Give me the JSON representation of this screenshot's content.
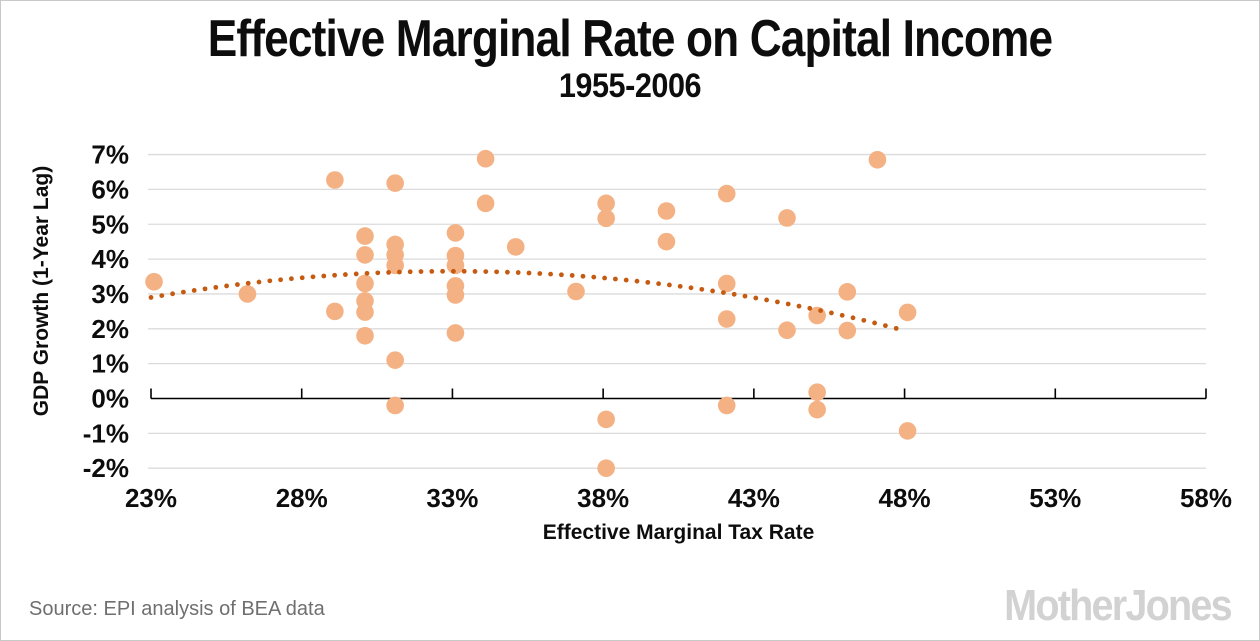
{
  "header": {
    "title": "Effective Marginal Rate on Capital Income",
    "subtitle": "1955-2006"
  },
  "footer": {
    "source": "Source: EPI analysis of BEA data",
    "logo": "MotherJones"
  },
  "chart_data": {
    "type": "scatter",
    "title": "Effective Marginal Rate on Capital Income",
    "subtitle": "1955-2006",
    "xlabel": "Effective Marginal Tax Rate",
    "ylabel": "GDP Growth (1-Year Lag)",
    "xlim": [
      23,
      58
    ],
    "ylim": [
      -2.5,
      7.3
    ],
    "grid": "horizontal-only",
    "x_tick_values": [
      23,
      28,
      33,
      38,
      43,
      48,
      53,
      58
    ],
    "x_tick_labels": [
      "23%",
      "28%",
      "33%",
      "38%",
      "43%",
      "48%",
      "53%",
      "58%"
    ],
    "y_tick_values": [
      7,
      6,
      5,
      4,
      3,
      2,
      1,
      0,
      -1,
      -2
    ],
    "y_tick_labels": [
      "7%",
      "6%",
      "5%",
      "4%",
      "3%",
      "2%",
      "1%",
      "0%",
      "-1%",
      "-2%"
    ],
    "points": [
      [
        23.1,
        3.35
      ],
      [
        26.2,
        3.0
      ],
      [
        29.1,
        6.27
      ],
      [
        29.1,
        2.5
      ],
      [
        30.1,
        4.66
      ],
      [
        30.1,
        4.12
      ],
      [
        30.1,
        3.3
      ],
      [
        30.1,
        2.8
      ],
      [
        30.1,
        2.48
      ],
      [
        30.1,
        1.8
      ],
      [
        31.1,
        6.18
      ],
      [
        31.1,
        4.42
      ],
      [
        31.1,
        4.12
      ],
      [
        31.1,
        3.82
      ],
      [
        31.1,
        1.1
      ],
      [
        31.1,
        -0.2
      ],
      [
        33.1,
        4.75
      ],
      [
        33.1,
        4.1
      ],
      [
        33.1,
        3.82
      ],
      [
        33.1,
        3.23
      ],
      [
        33.1,
        2.97
      ],
      [
        33.1,
        1.88
      ],
      [
        34.1,
        6.88
      ],
      [
        34.1,
        5.6
      ],
      [
        35.1,
        4.35
      ],
      [
        37.1,
        3.07
      ],
      [
        38.1,
        5.6
      ],
      [
        38.1,
        5.17
      ],
      [
        38.1,
        -0.6
      ],
      [
        38.1,
        -2.0
      ],
      [
        40.1,
        5.38
      ],
      [
        40.1,
        4.5
      ],
      [
        42.1,
        5.88
      ],
      [
        42.1,
        3.3
      ],
      [
        42.1,
        2.28
      ],
      [
        42.1,
        -0.2
      ],
      [
        44.1,
        5.18
      ],
      [
        44.1,
        1.96
      ],
      [
        45.1,
        2.38
      ],
      [
        45.1,
        0.18
      ],
      [
        45.1,
        -0.32
      ],
      [
        46.1,
        3.06
      ],
      [
        46.1,
        1.95
      ],
      [
        47.1,
        6.85
      ],
      [
        48.1,
        2.47
      ],
      [
        48.1,
        -0.93
      ]
    ],
    "trendline": {
      "style": "dotted",
      "shape": "quadratic",
      "a": -0.0075385,
      "b": 0.49723,
      "c": -4.54841,
      "x_start": 23.0,
      "x_end": 47.9
    },
    "colors": {
      "point": "#F4B183",
      "trend": "#C55A11",
      "grid": "#DBDBDB",
      "axis": "#000000",
      "title": "#0d0d0d",
      "source_text": "#6F6F6F",
      "logo": "#D2D2D2"
    }
  }
}
